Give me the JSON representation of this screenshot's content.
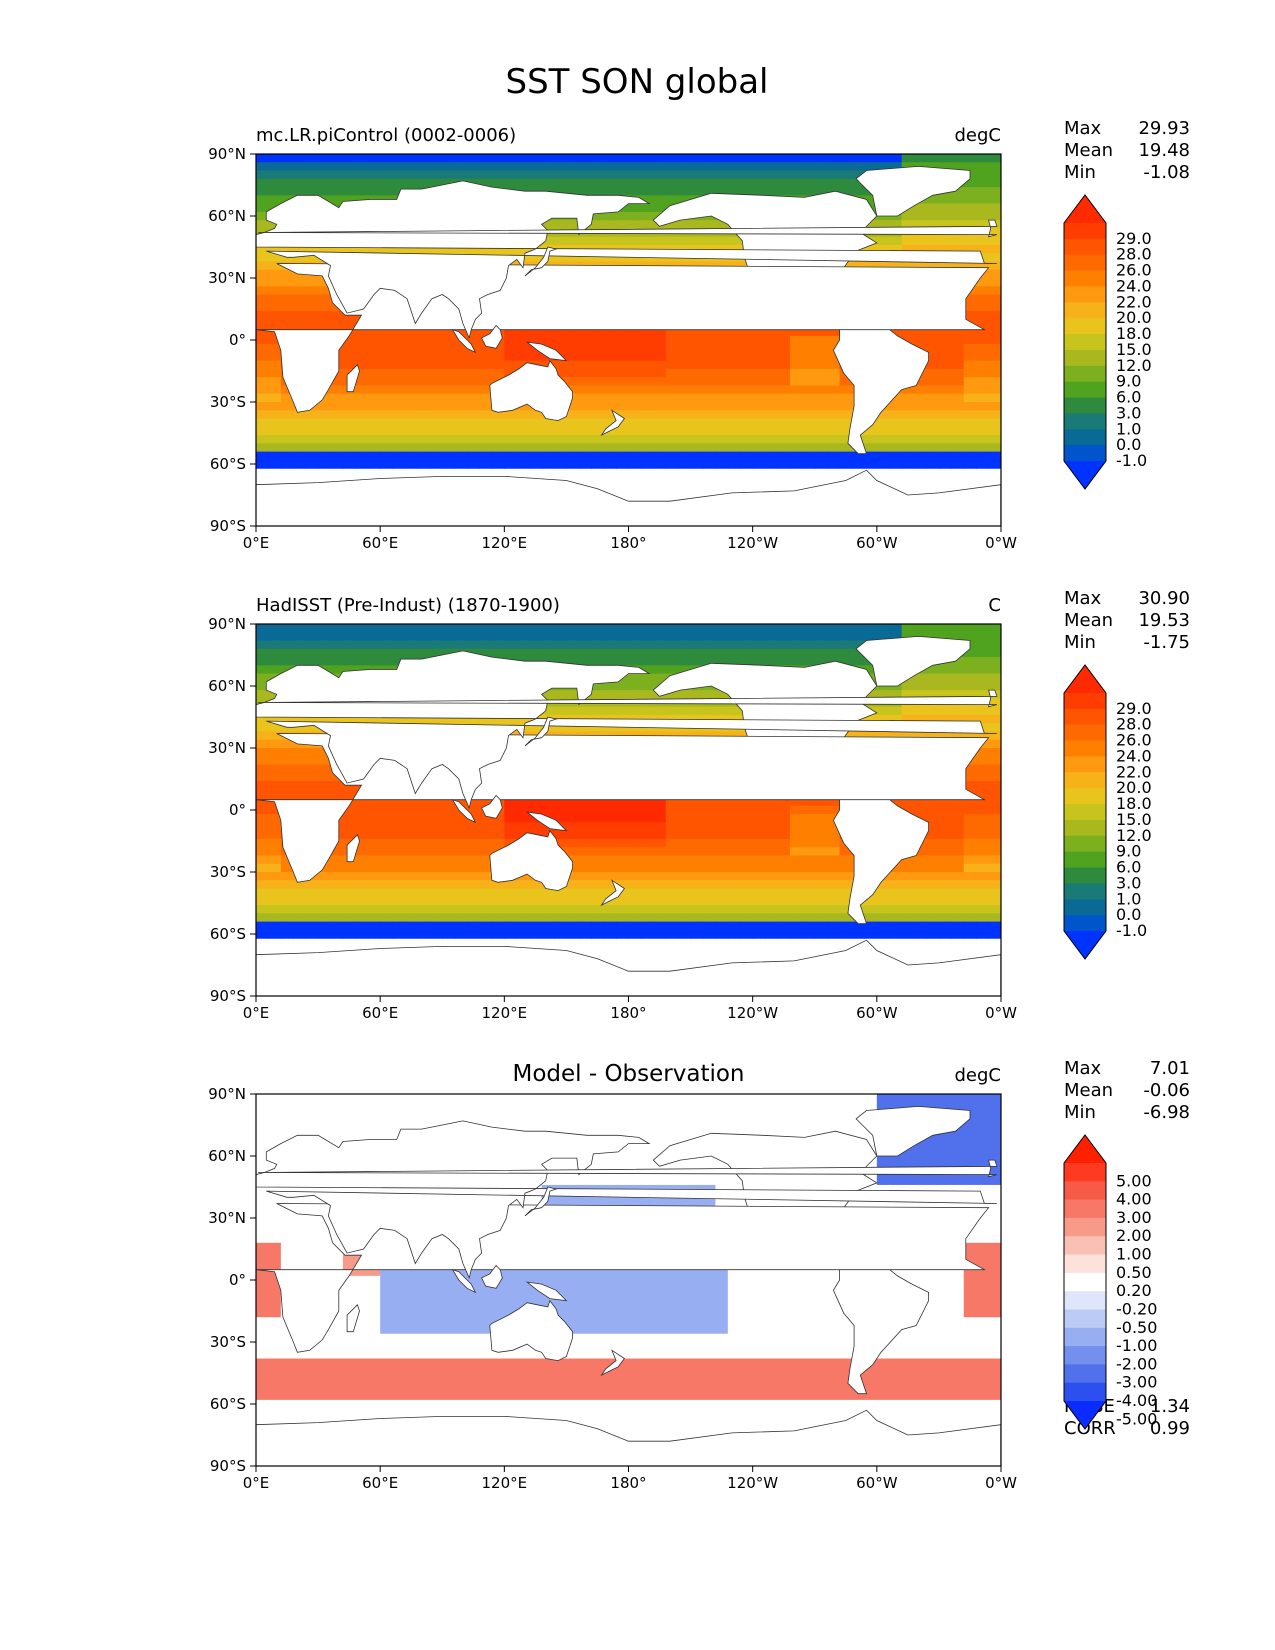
{
  "title": "SST SON global",
  "axes": {
    "y_ticks": [
      "90°N",
      "60°N",
      "30°N",
      "0°",
      "30°S",
      "60°S",
      "90°S"
    ],
    "x_ticks": [
      "0°E",
      "60°E",
      "120°E",
      "180°",
      "120°W",
      "60°W",
      "0°W"
    ]
  },
  "chart_data": [
    {
      "type": "heatmap",
      "title": "mc.LR.piControl (0002-0006)",
      "units": "degC",
      "stats": [
        [
          "Max",
          "29.93"
        ],
        [
          "Mean",
          "19.48"
        ],
        [
          "Min",
          "-1.08"
        ]
      ],
      "colorbar": {
        "labels": [
          "29.0",
          "28.0",
          "26.0",
          "24.0",
          "22.0",
          "20.0",
          "18.0",
          "15.0",
          "12.0",
          "9.0",
          "6.0",
          "3.0",
          "1.0",
          "0.0",
          "-1.0"
        ],
        "colors": [
          "#ff2a00",
          "#ff3d00",
          "#ff5500",
          "#ff6a00",
          "#ff8000",
          "#ff9a10",
          "#f7b21a",
          "#e8c41c",
          "#c8c41e",
          "#a8b81e",
          "#7cb01e",
          "#4fa31e",
          "#2e8a3c",
          "#1a7a78",
          "#0a6a96",
          "#0055cc",
          "#0033ff"
        ]
      },
      "xlim": [
        0,
        360
      ],
      "ylim": [
        -90,
        90
      ]
    },
    {
      "type": "heatmap",
      "title": "HadISST (Pre-Indust) (1870-1900)",
      "units": "C",
      "stats": [
        [
          "Max",
          "30.90"
        ],
        [
          "Mean",
          "19.53"
        ],
        [
          "Min",
          "-1.75"
        ]
      ],
      "colorbar": {
        "labels": [
          "29.0",
          "28.0",
          "26.0",
          "24.0",
          "22.0",
          "20.0",
          "18.0",
          "15.0",
          "12.0",
          "9.0",
          "6.0",
          "3.0",
          "1.0",
          "0.0",
          "-1.0"
        ],
        "colors": [
          "#ff2a00",
          "#ff3d00",
          "#ff5500",
          "#ff6a00",
          "#ff8000",
          "#ff9a10",
          "#f7b21a",
          "#e8c41c",
          "#c8c41e",
          "#a8b81e",
          "#7cb01e",
          "#4fa31e",
          "#2e8a3c",
          "#1a7a78",
          "#0a6a96",
          "#0055cc",
          "#0033ff"
        ]
      },
      "xlim": [
        0,
        360
      ],
      "ylim": [
        -90,
        90
      ]
    },
    {
      "type": "heatmap",
      "title": "Model - Observation",
      "units": "degC",
      "stats": [
        [
          "Max",
          "7.01"
        ],
        [
          "Mean",
          "-0.06"
        ],
        [
          "Min",
          "-6.98"
        ]
      ],
      "extra_stats": [
        [
          "RMSE",
          "1.34"
        ],
        [
          "CORR",
          "0.99"
        ]
      ],
      "colorbar": {
        "labels": [
          "5.00",
          "4.00",
          "3.00",
          "2.00",
          "1.00",
          "0.50",
          "0.20",
          "-0.20",
          "-0.50",
          "-1.00",
          "-2.00",
          "-3.00",
          "-4.00",
          "-5.00"
        ],
        "colors": [
          "#ff2000",
          "#ff3a20",
          "#f85a48",
          "#f87868",
          "#f89a8a",
          "#fbc0b4",
          "#fde2dc",
          "#ffffff",
          "#dfe6fb",
          "#bccbf6",
          "#98aef2",
          "#7490ee",
          "#5070ec",
          "#2c50ef",
          "#0b2cff"
        ]
      },
      "xlim": [
        0,
        360
      ],
      "ylim": [
        -90,
        90
      ]
    }
  ]
}
